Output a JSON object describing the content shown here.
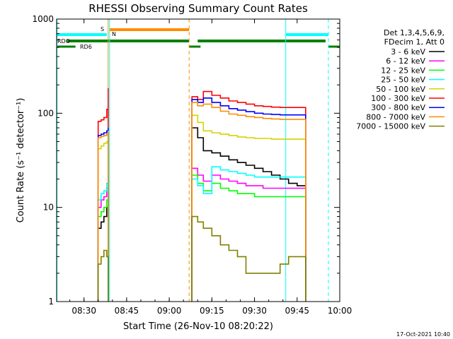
{
  "chart_data": {
    "type": "line",
    "title": "RHESSI Observing Summary Count Rates",
    "xlabel": "Start Time (26-Nov-10 08:20:22)",
    "ylabel": "Count Rate (s⁻¹ detector⁻¹)",
    "y_scale": "log",
    "ylim": [
      1,
      1000
    ],
    "xlim": [
      "08:20:22",
      "10:00:00"
    ],
    "x_ticks": [
      "08:30",
      "08:45",
      "09:00",
      "09:15",
      "09:30",
      "09:45",
      "10:00"
    ],
    "y_ticks": [
      "1",
      "10",
      "100",
      "1000"
    ],
    "timestamp": "17-Oct-2021 10:40",
    "legend": {
      "placement": "right",
      "header": [
        "Det 1,3,4,5,6,9,",
        "FDecim 1, Att 0"
      ],
      "entries": [
        {
          "label": "3 - 6 keV",
          "color": "#000000"
        },
        {
          "label": "6 - 12 keV",
          "color": "#ff00ff"
        },
        {
          "label": "12 - 25 keV",
          "color": "#00ff00"
        },
        {
          "label": "25 - 50 keV",
          "color": "#00ffff"
        },
        {
          "label": "50 - 100 keV",
          "color": "#d4d400"
        },
        {
          "label": "100 - 300 keV",
          "color": "#ff0000"
        },
        {
          "label": "300 - 800 keV",
          "color": "#0000ff"
        },
        {
          "label": "800 - 7000 keV",
          "color": "#ff8c00"
        },
        {
          "label": "7000 - 15000 keV",
          "color": "#808000"
        }
      ]
    },
    "flag_bars": [
      {
        "label": "S",
        "color": "#ff8c00",
        "segments": [
          [
            "08:39",
            "09:07"
          ]
        ]
      },
      {
        "label": "N",
        "color": "#00ffff",
        "segments": [
          [
            "08:20:22",
            "08:38"
          ],
          [
            "09:41",
            "09:56"
          ]
        ]
      },
      {
        "label": "RDO",
        "color": "#008000",
        "segments": [
          [
            "08:24",
            "09:07"
          ],
          [
            "09:10",
            "09:55"
          ]
        ]
      },
      {
        "label": "RD6",
        "color": "#008000",
        "segments": [
          [
            "08:20:22",
            "08:27"
          ],
          [
            "09:07",
            "09:11"
          ],
          [
            "09:56",
            "10:00"
          ]
        ]
      }
    ],
    "vlines": [
      {
        "time": "08:20:30",
        "color": "#00ffff",
        "style": "solid"
      },
      {
        "time": "08:38:30",
        "color": "#ff8c00",
        "style": "solid"
      },
      {
        "time": "08:39",
        "color": "#00ffff",
        "style": "solid"
      },
      {
        "time": "09:07",
        "color": "#ff8c00",
        "style": "dashed"
      },
      {
        "time": "09:41",
        "color": "#00ffff",
        "style": "solid"
      },
      {
        "time": "09:56",
        "color": "#00ffff",
        "style": "dashed"
      }
    ],
    "segments": [
      {
        "start": "08:35",
        "end": "08:38:30"
      },
      {
        "start": "09:08",
        "end": "09:48"
      }
    ],
    "series": [
      {
        "name": "3 - 6 keV",
        "color": "#000000",
        "x": [
          "08:35",
          "08:36",
          "08:37",
          "08:38",
          "08:38:30",
          "09:08",
          "09:10",
          "09:12",
          "09:15",
          "09:18",
          "09:21",
          "09:24",
          "09:27",
          "09:30",
          "09:33",
          "09:36",
          "09:39",
          "09:42",
          "09:45",
          "09:48"
        ],
        "y": [
          6,
          7,
          8,
          10,
          14,
          70,
          55,
          40,
          38,
          35,
          32,
          30,
          28,
          26,
          24,
          22,
          20,
          18,
          17,
          17
        ]
      },
      {
        "name": "6 - 12 keV",
        "color": "#ff00ff",
        "x": [
          "08:35",
          "08:36",
          "08:37",
          "08:38",
          "08:38:30",
          "09:08",
          "09:10",
          "09:12",
          "09:15",
          "09:18",
          "09:21",
          "09:24",
          "09:27",
          "09:30",
          "09:33",
          "09:36",
          "09:39",
          "09:42",
          "09:45",
          "09:48"
        ],
        "y": [
          10,
          12,
          13,
          16,
          20,
          26,
          22,
          19,
          22,
          20,
          19,
          18,
          17,
          17,
          16,
          16,
          16,
          16,
          16,
          16
        ]
      },
      {
        "name": "12 - 25 keV",
        "color": "#00ff00",
        "x": [
          "08:35",
          "08:36",
          "08:37",
          "08:38",
          "08:38:30",
          "09:08",
          "09:10",
          "09:12",
          "09:15",
          "09:18",
          "09:21",
          "09:24",
          "09:27",
          "09:30",
          "09:33",
          "09:36",
          "09:39",
          "09:42",
          "09:45",
          "09:48"
        ],
        "y": [
          8,
          9,
          10,
          12,
          15,
          22,
          18,
          15,
          18,
          16,
          15,
          14,
          14,
          13,
          13,
          13,
          13,
          13,
          13,
          13
        ]
      },
      {
        "name": "25 - 50 keV",
        "color": "#00ffff",
        "x": [
          "08:35",
          "08:36",
          "08:37",
          "08:38",
          "08:38:30",
          "09:08",
          "09:10",
          "09:12",
          "09:15",
          "09:18",
          "09:21",
          "09:24",
          "09:27",
          "09:30",
          "09:33",
          "09:36",
          "09:39",
          "09:42",
          "09:45",
          "09:48"
        ],
        "y": [
          12,
          14,
          15,
          18,
          22,
          20,
          17,
          14,
          27,
          25,
          24,
          23,
          22,
          21,
          21,
          21,
          21,
          21,
          21,
          21
        ]
      },
      {
        "name": "50 - 100 keV",
        "color": "#d4d400",
        "x": [
          "08:35",
          "08:36",
          "08:37",
          "08:38",
          "08:38:30",
          "09:08",
          "09:10",
          "09:12",
          "09:15",
          "09:18",
          "09:21",
          "09:24",
          "09:27",
          "09:30",
          "09:33",
          "09:36",
          "09:39",
          "09:42",
          "09:45",
          "09:48"
        ],
        "y": [
          42,
          45,
          48,
          50,
          55,
          95,
          80,
          65,
          62,
          60,
          58,
          56,
          55,
          54,
          54,
          53,
          53,
          53,
          53,
          53
        ]
      },
      {
        "name": "100 - 300 keV",
        "color": "#ff0000",
        "x": [
          "08:35",
          "08:36",
          "08:37",
          "08:38",
          "08:38:30",
          "09:08",
          "09:10",
          "09:12",
          "09:15",
          "09:18",
          "09:21",
          "09:24",
          "09:27",
          "09:30",
          "09:33",
          "09:36",
          "09:39",
          "09:42",
          "09:45",
          "09:48"
        ],
        "y": [
          82,
          85,
          90,
          110,
          185,
          150,
          140,
          170,
          155,
          145,
          135,
          130,
          125,
          120,
          118,
          116,
          115,
          115,
          115,
          115
        ]
      },
      {
        "name": "300 - 800 keV",
        "color": "#0000ff",
        "x": [
          "08:35",
          "08:36",
          "08:37",
          "08:38",
          "08:38:30",
          "09:08",
          "09:10",
          "09:12",
          "09:15",
          "09:18",
          "09:21",
          "09:24",
          "09:27",
          "09:30",
          "09:33",
          "09:36",
          "09:39",
          "09:42",
          "09:45",
          "09:48"
        ],
        "y": [
          58,
          60,
          62,
          65,
          70,
          140,
          130,
          145,
          130,
          120,
          112,
          108,
          104,
          100,
          98,
          97,
          96,
          96,
          96,
          96
        ]
      },
      {
        "name": "800 - 7000 keV",
        "color": "#ff8c00",
        "x": [
          "08:35",
          "08:36",
          "08:37",
          "08:38",
          "08:38:30",
          "09:08",
          "09:10",
          "09:12",
          "09:15",
          "09:18",
          "09:21",
          "09:24",
          "09:27",
          "09:30",
          "09:33",
          "09:36",
          "09:39",
          "09:42",
          "09:45",
          "09:48"
        ],
        "y": [
          55,
          57,
          58,
          60,
          65,
          130,
          120,
          125,
          115,
          105,
          98,
          95,
          92,
          90,
          88,
          87,
          86,
          86,
          86,
          86
        ]
      },
      {
        "name": "7000 - 15000 keV",
        "color": "#808000",
        "x": [
          "08:35",
          "08:36",
          "08:37",
          "08:38",
          "08:38:30",
          "09:08",
          "09:10",
          "09:12",
          "09:15",
          "09:18",
          "09:21",
          "09:24",
          "09:27",
          "09:30",
          "09:33",
          "09:36",
          "09:39",
          "09:42",
          "09:45",
          "09:48"
        ],
        "y": [
          2.5,
          3,
          3.5,
          3,
          3,
          8,
          7,
          6,
          5,
          4,
          3.5,
          3,
          2,
          2,
          2,
          2,
          2.5,
          3,
          3,
          3
        ]
      }
    ]
  }
}
